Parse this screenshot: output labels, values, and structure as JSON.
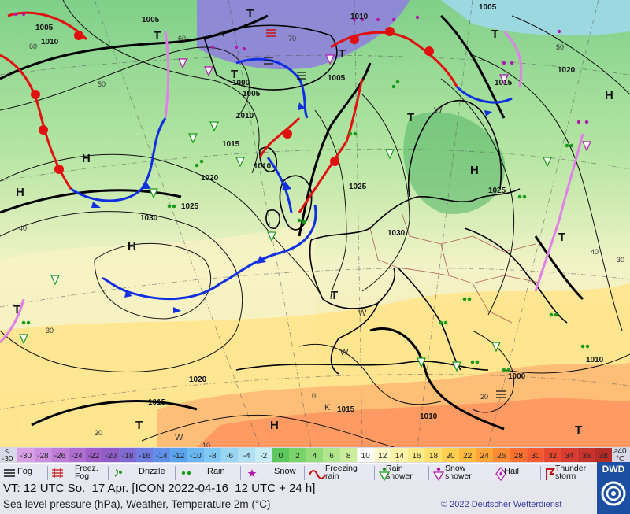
{
  "map": {
    "pressure_labels": [
      "1005",
      "1010",
      "1010",
      "1005",
      "1000",
      "1005",
      "1010",
      "1015",
      "1010",
      "1020",
      "1025",
      "1030",
      "1025",
      "1030",
      "1025",
      "1020",
      "1015",
      "1005",
      "1000",
      "1010",
      "1015",
      "1020",
      "1015",
      "1005",
      "1010"
    ],
    "pressure_centers": [
      "H",
      "H",
      "H",
      "H",
      "H",
      "H",
      "T",
      "T",
      "T",
      "T",
      "T",
      "T",
      "T",
      "T",
      "T",
      "T",
      "T",
      "K",
      "K",
      "W",
      "W",
      "W",
      "W"
    ],
    "temperature_labels": [
      "60",
      "50",
      "40",
      "30",
      "20",
      "10",
      "0",
      "50",
      "60",
      "70",
      "40",
      "20",
      "30"
    ],
    "colors": {
      "isobar": "#111111",
      "cold_front": "#1030e0",
      "warm_front": "#e01010",
      "occlusion": "#e080e8",
      "rain": "#1a9a1a",
      "snow": "#b01ab0",
      "coast": "#000000"
    }
  },
  "colorbar": {
    "left_label_top": "<",
    "left_label_bottom": "-30",
    "right_label_top": "≥40",
    "right_label_bottom": "°C",
    "values": [
      "-30",
      "-28",
      "-26",
      "-24",
      "-22",
      "-20",
      "-18",
      "-16",
      "-14",
      "-12",
      "-10",
      "-8",
      "-6",
      "-4",
      "-2",
      "0",
      "2",
      "4",
      "6",
      "8",
      "10",
      "12",
      "14",
      "16",
      "18",
      "20",
      "22",
      "24",
      "26",
      "28",
      "30",
      "32",
      "34",
      "36",
      "38"
    ],
    "colors": [
      "#d9a0e8",
      "#cc8fe0",
      "#bf7ed8",
      "#b06ed0",
      "#a05ec8",
      "#8f5cc8",
      "#7f6ad4",
      "#6f7ce0",
      "#6090e8",
      "#5aa4ee",
      "#6ab8f2",
      "#80c8f4",
      "#98d6f4",
      "#b0e2f4",
      "#c8ecf4",
      "#5cc85c",
      "#78d468",
      "#94dc78",
      "#b0e68c",
      "#ccee9c",
      "#ffffff",
      "#fffacc",
      "#fff3a8",
      "#ffec88",
      "#ffe06a",
      "#ffd050",
      "#ffbc40",
      "#ffa638",
      "#ff8c34",
      "#ff7030",
      "#f65a30",
      "#e84830",
      "#d83c30",
      "#c8342c",
      "#b82c28"
    ]
  },
  "legend": {
    "fog": "Fog",
    "freezing_fog": "Freez.\nFog",
    "drizzle": "Drizzle",
    "rain": "Rain",
    "snow": "Snow",
    "freezing_rain": "Freezing\nrain",
    "rain_shower": "Rain\nshower",
    "snow_shower": "Snow\nshower",
    "hail": "Hail",
    "thunderstorm": "Thunder\nstorm"
  },
  "footer": {
    "vt_line": "VT: 12 UTC So.  17 Apr. [ICON 2022-04-16  12 UTC + 24 h]",
    "subtitle": "Sea level pressure (hPa), Weather, Temperature 2m (°C)",
    "copyright": "© 2022 Deutscher Wetterdienst",
    "logo": "DWD"
  }
}
